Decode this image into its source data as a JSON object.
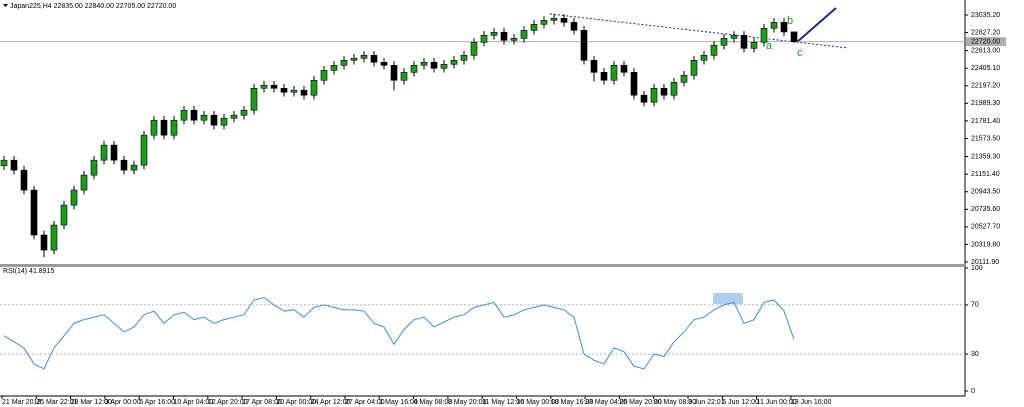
{
  "chart_data": [
    {
      "type": "candlestick",
      "title": "Japan225,H4  22835.00 22840.00 22705.00 22720.00",
      "x_labels": [
        "21 Mar 2018",
        "25 Mar 22:01",
        "28 Mar 12:00",
        "3 Apr 00:00",
        "5 Apr 16:00",
        "10 Apr 04:00",
        "12 Apr 20:00",
        "17 Apr 08:00",
        "20 Apr 00:00",
        "24 Apr 12:00",
        "27 Apr 04:00",
        "1 May 16:00",
        "4 May 08:00",
        "8 May 20:00",
        "11 May 12:00",
        "16 May 00:00",
        "18 May 16:00",
        "23 May 04:00",
        "25 May 20:00",
        "30 May 08:00",
        "3 Jun 22:01",
        "6 Jun 12:00",
        "11 Jun 00:00",
        "13 Jun 16:00"
      ],
      "open": [
        21250,
        21317,
        21199,
        20963,
        20431,
        20253,
        20549,
        20785,
        20963,
        21140,
        21317,
        21495,
        21317,
        21199,
        21258,
        21613,
        21790,
        21613,
        21790,
        21908,
        21790,
        21849,
        21731,
        21814,
        21849,
        21908,
        22168,
        22204,
        22168,
        22121,
        22145,
        22086,
        22263,
        22381,
        22440,
        22499,
        22523,
        22558,
        22476,
        22440,
        22263,
        22357,
        22440,
        22476,
        22405,
        22452,
        22499,
        22558,
        22712,
        22795,
        22830,
        22736,
        22759,
        22854,
        22925,
        22972,
        22996,
        22948,
        22854,
        22499,
        22357,
        22263,
        22440,
        22357,
        22086,
        22003,
        22168,
        22086,
        22239,
        22322,
        22499,
        22558,
        22677,
        22759,
        22795,
        22641,
        22712,
        22878,
        22948,
        22835
      ],
      "high": [
        21367,
        21367,
        21249,
        21013,
        20481,
        20599,
        20835,
        21013,
        21190,
        21367,
        21545,
        21545,
        21367,
        21308,
        21663,
        21840,
        21840,
        21840,
        21958,
        21958,
        21899,
        21899,
        21864,
        21899,
        21958,
        22218,
        22254,
        22254,
        22218,
        22195,
        22195,
        22313,
        22431,
        22490,
        22549,
        22573,
        22608,
        22608,
        22526,
        22490,
        22407,
        22490,
        22526,
        22526,
        22502,
        22549,
        22608,
        22762,
        22845,
        22880,
        22880,
        22809,
        22904,
        22975,
        23022,
        23046,
        23046,
        22998,
        22904,
        22549,
        22407,
        22490,
        22490,
        22407,
        22136,
        22218,
        22218,
        22289,
        22372,
        22549,
        22608,
        22727,
        22809,
        22845,
        22845,
        22762,
        22928,
        22998,
        22998,
        22840
      ],
      "low": [
        21200,
        21149,
        20913,
        20381,
        20170,
        20203,
        20499,
        20735,
        20913,
        21090,
        21267,
        21267,
        21149,
        21149,
        21208,
        21563,
        21563,
        21563,
        21740,
        21740,
        21740,
        21681,
        21681,
        21764,
        21799,
        21858,
        22118,
        22118,
        22071,
        22071,
        22036,
        22036,
        22213,
        22331,
        22390,
        22449,
        22473,
        22426,
        22390,
        22140,
        22213,
        22307,
        22390,
        22355,
        22355,
        22402,
        22449,
        22508,
        22662,
        22745,
        22686,
        22686,
        22709,
        22804,
        22875,
        22922,
        22898,
        22804,
        22449,
        22250,
        22213,
        22213,
        22307,
        22036,
        21953,
        21953,
        22036,
        22036,
        22189,
        22272,
        22449,
        22508,
        22627,
        22709,
        22591,
        22591,
        22662,
        22828,
        22785,
        22705
      ],
      "close": [
        21317,
        21199,
        20963,
        20431,
        20253,
        20549,
        20785,
        20963,
        21140,
        21317,
        21495,
        21317,
        21199,
        21258,
        21613,
        21790,
        21613,
        21790,
        21908,
        21790,
        21849,
        21731,
        21814,
        21849,
        21908,
        22168,
        22204,
        22168,
        22121,
        22145,
        22086,
        22263,
        22381,
        22440,
        22499,
        22523,
        22558,
        22476,
        22440,
        22263,
        22357,
        22440,
        22476,
        22405,
        22452,
        22499,
        22558,
        22712,
        22795,
        22830,
        22736,
        22759,
        22854,
        22925,
        22972,
        22996,
        22948,
        22854,
        22499,
        22357,
        22263,
        22440,
        22357,
        22086,
        22003,
        22168,
        22086,
        22239,
        22322,
        22499,
        22558,
        22677,
        22759,
        22795,
        22641,
        22712,
        22878,
        22948,
        22835,
        22720
      ],
      "up_color": "#1a9e1a",
      "down_color": "#000000",
      "ylim": [
        20088,
        23189
      ],
      "yticks": [
        {
          "value": 23035.2,
          "label": "23035.20"
        },
        {
          "value": 22827.2,
          "label": "22827.20"
        },
        {
          "value": 22613,
          "label": "22613.00"
        },
        {
          "value": 22405.1,
          "label": "22405.10"
        },
        {
          "value": 22197.2,
          "label": "22197.20"
        },
        {
          "value": 21989.3,
          "label": "21989.30"
        },
        {
          "value": 21781.4,
          "label": "21781.40"
        },
        {
          "value": 21573.5,
          "label": "21573.50"
        },
        {
          "value": 21359.3,
          "label": "21359.30"
        },
        {
          "value": 21151.4,
          "label": "21151.40"
        },
        {
          "value": 20943.5,
          "label": "20943.50"
        },
        {
          "value": 20735.6,
          "label": "20735.60"
        },
        {
          "value": 20527.7,
          "label": "20527.70"
        },
        {
          "value": 20319.8,
          "label": "20319.80"
        },
        {
          "value": 20111.9,
          "label": "20111.90"
        }
      ],
      "last_price": {
        "value": 22720,
        "label": "22720.00"
      },
      "annotations": [
        "a",
        "b",
        "c"
      ]
    },
    {
      "type": "line",
      "title": "RSI(14) 41.8915",
      "color": "#3d8fe0",
      "values": [
        45,
        40,
        35,
        22,
        18,
        35,
        45,
        55,
        58,
        60,
        62,
        55,
        48,
        52,
        62,
        65,
        55,
        62,
        64,
        58,
        60,
        55,
        58,
        60,
        62,
        74,
        76,
        70,
        65,
        66,
        60,
        68,
        70,
        68,
        66,
        66,
        65,
        55,
        52,
        38,
        50,
        58,
        60,
        52,
        56,
        60,
        62,
        68,
        70,
        72,
        60,
        62,
        66,
        68,
        70,
        68,
        66,
        60,
        30,
        25,
        22,
        35,
        32,
        20,
        18,
        30,
        28,
        40,
        48,
        58,
        60,
        66,
        70,
        72,
        55,
        58,
        72,
        74,
        65,
        41.8915
      ],
      "ylim": [
        0,
        100
      ],
      "yticks": [
        100,
        70,
        30,
        0
      ]
    }
  ]
}
